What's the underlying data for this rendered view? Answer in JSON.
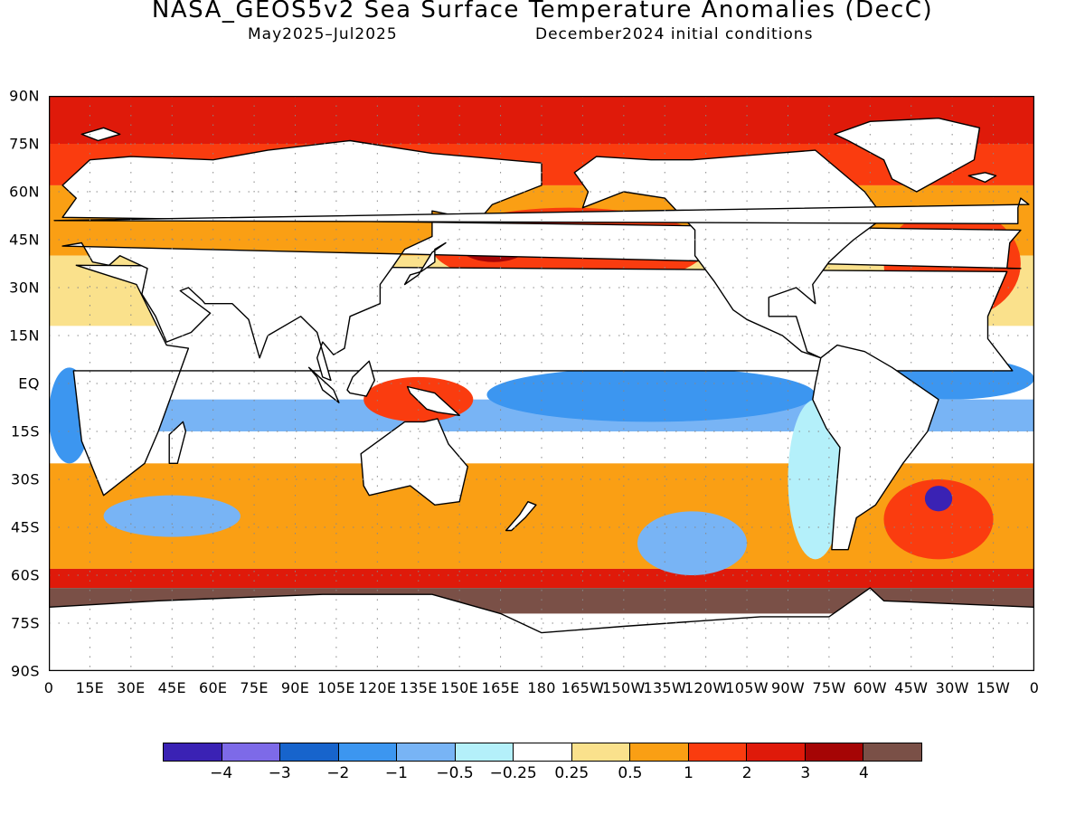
{
  "title": "NASA_GEOS5v2 Sea Surface Temperature Anomalies (DecC)",
  "subtitle_left": "May2025–Jul2025",
  "subtitle_right": "December2024 initial conditions",
  "lat_labels": [
    "90N",
    "75N",
    "60N",
    "45N",
    "30N",
    "15N",
    "EQ",
    "15S",
    "30S",
    "45S",
    "60S",
    "75S",
    "90S"
  ],
  "lon_labels": [
    "0",
    "15E",
    "30E",
    "45E",
    "60E",
    "75E",
    "90E",
    "105E",
    "120E",
    "135E",
    "150E",
    "165E",
    "180",
    "165W",
    "150W",
    "135W",
    "120W",
    "105W",
    "90W",
    "75W",
    "60W",
    "45W",
    "30W",
    "15W",
    "0"
  ],
  "colorbar": {
    "colors": [
      "#3a22b4",
      "#7d6ae8",
      "#1764cc",
      "#3c96f0",
      "#78b4f5",
      "#b4f0fa",
      "#ffffff",
      "#fae18c",
      "#fa9f14",
      "#fa3c0f",
      "#df1a0a",
      "#a50505",
      "#7a5047"
    ],
    "labels": [
      "−4",
      "−3",
      "−2",
      "−1",
      "−0.5",
      "−0.25",
      "0.25",
      "0.5",
      "1",
      "2",
      "3",
      "4"
    ]
  },
  "map": {
    "bands": [
      {
        "lat": [
          75,
          90
        ],
        "color": "#df1a0a"
      },
      {
        "lat": [
          62,
          75
        ],
        "color": "#fa3c0f"
      },
      {
        "lat": [
          40,
          62
        ],
        "color": "#fa9f14"
      },
      {
        "lat": [
          18,
          40
        ],
        "color": "#fae18c"
      },
      {
        "lat": [
          -5,
          18
        ],
        "color": "#ffffff"
      },
      {
        "lat": [
          -15,
          -5
        ],
        "color": "#78b4f5"
      },
      {
        "lat": [
          -25,
          -15
        ],
        "color": "#ffffff"
      },
      {
        "lat": [
          -58,
          -25
        ],
        "color": "#fa9f14"
      },
      {
        "lat": [
          -64,
          -58
        ],
        "color": "#df1a0a"
      },
      {
        "lat": [
          -72,
          -64
        ],
        "color": "#7a5047"
      }
    ],
    "patches": [
      {
        "lon": [
          140,
          240
        ],
        "lat": [
          30,
          55
        ],
        "color": "#fa3c0f"
      },
      {
        "lon": [
          150,
          175
        ],
        "lat": [
          38,
          48
        ],
        "color": "#a50505"
      },
      {
        "lon": [
          305,
          355
        ],
        "lat": [
          20,
          55
        ],
        "color": "#fa3c0f"
      },
      {
        "lon": [
          160,
          280
        ],
        "lat": [
          -12,
          5
        ],
        "color": "#3c96f0"
      },
      {
        "lon": [
          300,
          360
        ],
        "lat": [
          -5,
          8
        ],
        "color": "#3c96f0"
      },
      {
        "lon": [
          0,
          15
        ],
        "lat": [
          -25,
          5
        ],
        "color": "#3c96f0"
      },
      {
        "lon": [
          305,
          345
        ],
        "lat": [
          -55,
          -30
        ],
        "color": "#fa3c0f"
      },
      {
        "lon": [
          20,
          70
        ],
        "lat": [
          -48,
          -35
        ],
        "color": "#78b4f5"
      },
      {
        "lon": [
          215,
          255
        ],
        "lat": [
          -60,
          -40
        ],
        "color": "#78b4f5"
      },
      {
        "lon": [
          320,
          330
        ],
        "lat": [
          -40,
          -32
        ],
        "color": "#3a22b4"
      },
      {
        "lon": [
          115,
          155
        ],
        "lat": [
          -12,
          2
        ],
        "color": "#fa3c0f"
      },
      {
        "lon": [
          270,
          290
        ],
        "lat": [
          -55,
          -5
        ],
        "color": "#b4f0fa"
      }
    ],
    "land": [
      {
        "name": "africa",
        "coords": [
          [
            -17,
            21
          ],
          [
            -10,
            35
          ],
          [
            10,
            37
          ],
          [
            32,
            31
          ],
          [
            43,
            12
          ],
          [
            51,
            11
          ],
          [
            40,
            -15
          ],
          [
            35,
            -25
          ],
          [
            20,
            -35
          ],
          [
            12,
            -18
          ],
          [
            9,
            4
          ],
          [
            -8,
            4
          ],
          [
            -17,
            14
          ]
        ]
      },
      {
        "name": "europe-asia",
        "coords": [
          [
            -10,
            36
          ],
          [
            -9,
            44
          ],
          [
            -5,
            48
          ],
          [
            5,
            52
          ],
          [
            10,
            58
          ],
          [
            5,
            62
          ],
          [
            15,
            70
          ],
          [
            30,
            71
          ],
          [
            60,
            70
          ],
          [
            80,
            73
          ],
          [
            110,
            76
          ],
          [
            140,
            72
          ],
          [
            180,
            69
          ],
          [
            180,
            62
          ],
          [
            162,
            56
          ],
          [
            157,
            51
          ],
          [
            140,
            54
          ],
          [
            140,
            46
          ],
          [
            130,
            42
          ],
          [
            126,
            37
          ],
          [
            121,
            31
          ],
          [
            121,
            25
          ],
          [
            110,
            21
          ],
          [
            108,
            11
          ],
          [
            104,
            9
          ],
          [
            100,
            13
          ],
          [
            98,
            8
          ],
          [
            100,
            2
          ],
          [
            103,
            1
          ],
          [
            98,
            16
          ],
          [
            92,
            21
          ],
          [
            80,
            15
          ],
          [
            77,
            8
          ],
          [
            73,
            20
          ],
          [
            67,
            25
          ],
          [
            57,
            25
          ],
          [
            56,
            26
          ],
          [
            51,
            30
          ],
          [
            48,
            29
          ],
          [
            59,
            22
          ],
          [
            52,
            16
          ],
          [
            43,
            13
          ],
          [
            39,
            21
          ],
          [
            34,
            28
          ],
          [
            36,
            36
          ],
          [
            26,
            40
          ],
          [
            22,
            37
          ],
          [
            16,
            38
          ],
          [
            12,
            44
          ],
          [
            5,
            43
          ],
          [
            -5,
            36
          ]
        ]
      },
      {
        "name": "north-america",
        "coords": [
          [
            -168,
            66
          ],
          [
            -160,
            71
          ],
          [
            -140,
            70
          ],
          [
            -125,
            70
          ],
          [
            -95,
            72
          ],
          [
            -80,
            73
          ],
          [
            -62,
            60
          ],
          [
            -55,
            52
          ],
          [
            -66,
            45
          ],
          [
            -70,
            42
          ],
          [
            -75,
            38
          ],
          [
            -81,
            31
          ],
          [
            -80,
            25
          ],
          [
            -87,
            30
          ],
          [
            -97,
            27
          ],
          [
            -97,
            21
          ],
          [
            -87,
            21
          ],
          [
            -83,
            10
          ],
          [
            -78,
            8
          ],
          [
            -85,
            10
          ],
          [
            -92,
            15
          ],
          [
            -105,
            20
          ],
          [
            -110,
            23
          ],
          [
            -117,
            32
          ],
          [
            -124,
            40
          ],
          [
            -124,
            48
          ],
          [
            -135,
            58
          ],
          [
            -150,
            60
          ],
          [
            -165,
            55
          ],
          [
            -163,
            60
          ]
        ]
      },
      {
        "name": "south-america",
        "coords": [
          [
            -78,
            8
          ],
          [
            -72,
            12
          ],
          [
            -62,
            10
          ],
          [
            -52,
            5
          ],
          [
            -35,
            -5
          ],
          [
            -39,
            -15
          ],
          [
            -48,
            -25
          ],
          [
            -58,
            -38
          ],
          [
            -65,
            -42
          ],
          [
            -68,
            -52
          ],
          [
            -74,
            -52
          ],
          [
            -73,
            -40
          ],
          [
            -71,
            -20
          ],
          [
            -76,
            -14
          ],
          [
            -81,
            -5
          ],
          [
            -80,
            0
          ]
        ]
      },
      {
        "name": "australia",
        "coords": [
          [
            114,
            -22
          ],
          [
            122,
            -17
          ],
          [
            130,
            -12
          ],
          [
            137,
            -12
          ],
          [
            142,
            -11
          ],
          [
            146,
            -19
          ],
          [
            153,
            -26
          ],
          [
            150,
            -37
          ],
          [
            141,
            -38
          ],
          [
            132,
            -32
          ],
          [
            117,
            -35
          ],
          [
            115,
            -32
          ]
        ]
      },
      {
        "name": "greenland",
        "coords": [
          [
            -73,
            78
          ],
          [
            -60,
            82
          ],
          [
            -35,
            83
          ],
          [
            -20,
            80
          ],
          [
            -22,
            70
          ],
          [
            -43,
            60
          ],
          [
            -52,
            64
          ],
          [
            -55,
            70
          ],
          [
            -68,
            76
          ]
        ]
      },
      {
        "name": "antarctica",
        "coords": [
          [
            -180,
            -78
          ],
          [
            -150,
            -76
          ],
          [
            -100,
            -73
          ],
          [
            -75,
            -73
          ],
          [
            -60,
            -64
          ],
          [
            -55,
            -68
          ],
          [
            0,
            -70
          ],
          [
            40,
            -68
          ],
          [
            70,
            -67
          ],
          [
            100,
            -66
          ],
          [
            140,
            -66
          ],
          [
            165,
            -72
          ],
          [
            180,
            -78
          ],
          [
            180,
            -90
          ],
          [
            -180,
            -90
          ]
        ]
      },
      {
        "name": "madagascar",
        "coords": [
          [
            44,
            -25
          ],
          [
            47,
            -25
          ],
          [
            50,
            -15
          ],
          [
            49,
            -12
          ],
          [
            44,
            -16
          ]
        ]
      },
      {
        "name": "japan",
        "coords": [
          [
            130,
            31
          ],
          [
            132,
            34
          ],
          [
            136,
            35
          ],
          [
            141,
            38
          ],
          [
            141,
            42
          ],
          [
            145,
            44
          ],
          [
            140,
            41
          ],
          [
            135,
            34
          ]
        ]
      },
      {
        "name": "uk",
        "coords": [
          [
            -6,
            50
          ],
          [
            2,
            51
          ],
          [
            -2,
            56
          ],
          [
            -5,
            58
          ],
          [
            -6,
            55
          ]
        ]
      },
      {
        "name": "borneo",
        "coords": [
          [
            109,
            -2
          ],
          [
            111,
            2
          ],
          [
            117,
            7
          ],
          [
            119,
            1
          ],
          [
            116,
            -4
          ],
          [
            110,
            -3
          ]
        ]
      },
      {
        "name": "new-guinea",
        "coords": [
          [
            131,
            -1
          ],
          [
            141,
            -3
          ],
          [
            150,
            -10
          ],
          [
            142,
            -9
          ],
          [
            138,
            -8
          ],
          [
            132,
            -3
          ]
        ]
      },
      {
        "name": "sumatra",
        "coords": [
          [
            95,
            5
          ],
          [
            104,
            -2
          ],
          [
            106,
            -6
          ],
          [
            100,
            -2
          ],
          [
            98,
            2
          ]
        ]
      },
      {
        "name": "new-zealand",
        "coords": [
          [
            167,
            -46
          ],
          [
            172,
            -41
          ],
          [
            175,
            -37
          ],
          [
            178,
            -38
          ],
          [
            174,
            -42
          ],
          [
            169,
            -46
          ]
        ]
      },
      {
        "name": "iceland",
        "coords": [
          [
            -24,
            65
          ],
          [
            -18,
            66
          ],
          [
            -14,
            65
          ],
          [
            -18,
            63
          ]
        ]
      },
      {
        "name": "svalbard",
        "coords": [
          [
            12,
            78
          ],
          [
            20,
            80
          ],
          [
            26,
            78
          ],
          [
            18,
            76
          ]
        ]
      }
    ]
  }
}
